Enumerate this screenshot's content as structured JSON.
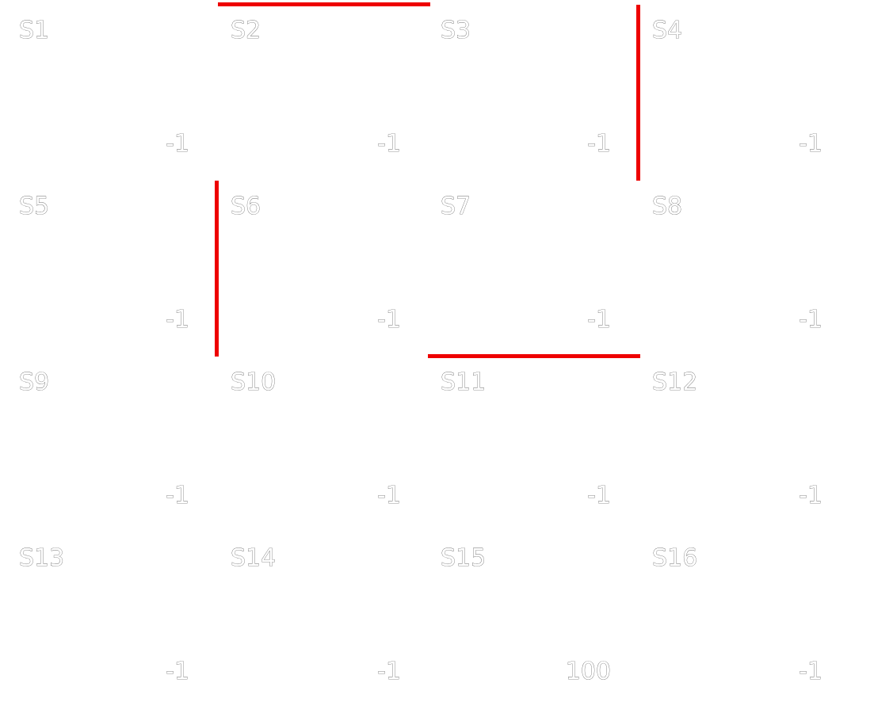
{
  "grid": {
    "rows": 4,
    "cols": 4,
    "cells": [
      {
        "state": "S1",
        "reward": "-1"
      },
      {
        "state": "S5",
        "reward": "-1"
      },
      {
        "state": "S9",
        "reward": "-1"
      },
      {
        "state": "S13",
        "reward": "-1"
      },
      {
        "state": "S2",
        "reward": "-1"
      },
      {
        "state": "S6",
        "reward": "-1"
      },
      {
        "state": "S10",
        "reward": "-1"
      },
      {
        "state": "S14",
        "reward": "-1"
      },
      {
        "state": "S3",
        "reward": "-1"
      },
      {
        "state": "S7",
        "reward": "-1"
      },
      {
        "state": "S11",
        "reward": "-1"
      },
      {
        "state": "S15",
        "reward": "100"
      },
      {
        "state": "S4",
        "reward": "-1"
      },
      {
        "state": "S8",
        "reward": "-1"
      },
      {
        "state": "S12",
        "reward": "-1"
      },
      {
        "state": "S16",
        "reward": "-1"
      }
    ],
    "walls": [
      {
        "between": [
          "S2",
          "S3"
        ],
        "orientation": "horizontal"
      },
      {
        "between": [
          "S6",
          "S10"
        ],
        "orientation": "vertical"
      },
      {
        "between": [
          "S4",
          "S8"
        ],
        "orientation": "vertical"
      },
      {
        "between": [
          "S11",
          "S12"
        ],
        "orientation": "horizontal"
      }
    ],
    "colors": {
      "wall": "#ee0000",
      "text_fill": "#ffffff",
      "text_outline": "#333333",
      "background": "#ffffff"
    }
  }
}
